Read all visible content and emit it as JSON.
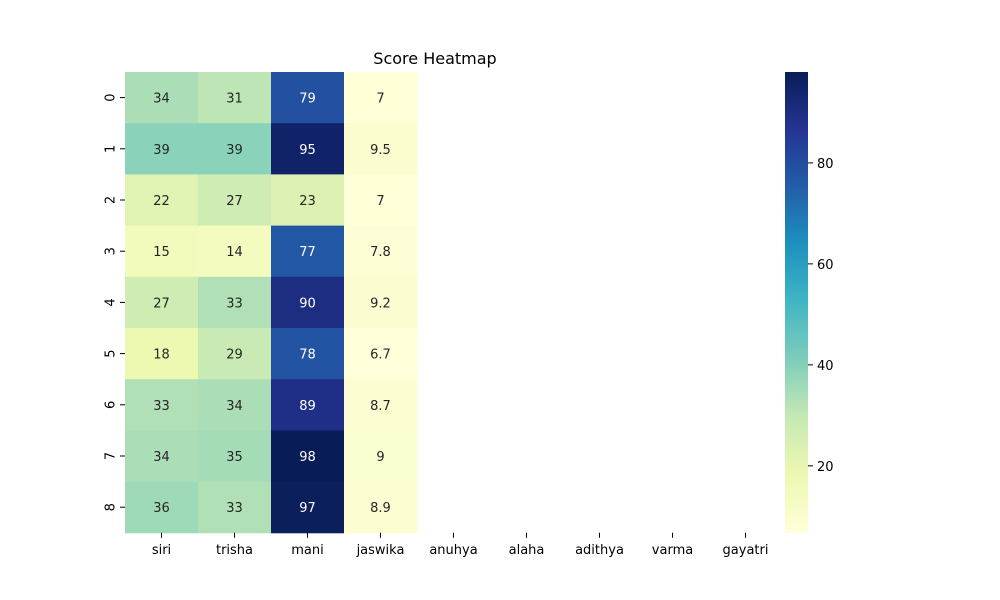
{
  "chart_data": {
    "type": "heatmap",
    "title": "Score Heatmap",
    "xlabel": "",
    "ylabel": "",
    "x_categories": [
      "siri",
      "trisha",
      "mani",
      "jaswika",
      "anuhya",
      "alaha",
      "adithya",
      "varma",
      "gayatri"
    ],
    "y_categories": [
      "0",
      "1",
      "2",
      "3",
      "4",
      "5",
      "6",
      "7",
      "8"
    ],
    "values": [
      [
        34,
        31,
        79,
        7,
        null,
        null,
        null,
        null,
        null
      ],
      [
        39,
        39,
        95,
        9.5,
        null,
        null,
        null,
        null,
        null
      ],
      [
        22,
        27,
        23,
        7,
        null,
        null,
        null,
        null,
        null
      ],
      [
        15,
        14,
        77,
        7.8,
        null,
        null,
        null,
        null,
        null
      ],
      [
        27,
        33,
        90,
        9.2,
        null,
        null,
        null,
        null,
        null
      ],
      [
        18,
        29,
        78,
        6.7,
        null,
        null,
        null,
        null,
        null
      ],
      [
        33,
        34,
        89,
        8.7,
        null,
        null,
        null,
        null,
        null
      ],
      [
        34,
        35,
        98,
        9,
        null,
        null,
        null,
        null,
        null
      ],
      [
        36,
        33,
        97,
        8.9,
        null,
        null,
        null,
        null,
        null
      ]
    ],
    "colormap": "YlGnBu",
    "colormap_stops": [
      "#ffffd9",
      "#edf8b1",
      "#c7e9b4",
      "#7fcdbb",
      "#41b6c4",
      "#1d91c0",
      "#225ea8",
      "#253494",
      "#081d58"
    ],
    "vmin": 6.7,
    "vmax": 98,
    "colorbar_ticks": [
      20,
      40,
      60,
      80
    ],
    "annotation_colors": {
      "dark": "#262626",
      "light": "#ffffff"
    },
    "grid": false
  }
}
